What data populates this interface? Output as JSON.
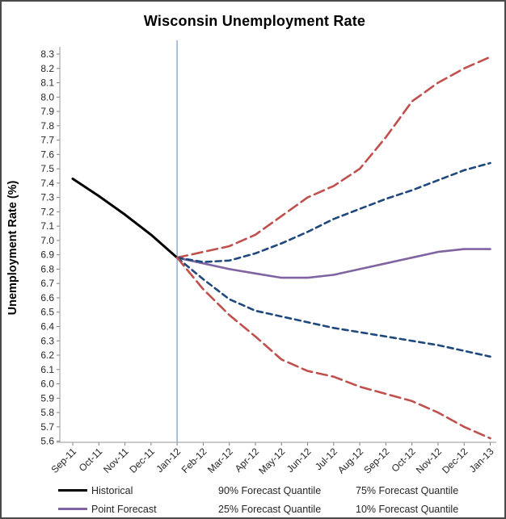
{
  "chart_data": {
    "type": "line",
    "title": "Wisconsin Unemployment Rate",
    "xlabel": "",
    "ylabel": "Unemployment Rate (%)",
    "ylim": [
      5.6,
      8.3
    ],
    "ytick_step": 0.1,
    "grid": false,
    "legend_position": "bottom",
    "categories": [
      "Sep-11",
      "Oct-11",
      "Nov-11",
      "Dec-11",
      "Jan-12",
      "Feb-12",
      "Mar-12",
      "Apr-12",
      "May-12",
      "Jun-12",
      "Jul-12",
      "Aug-12",
      "Sep-12",
      "Oct-12",
      "Nov-12",
      "Dec-12",
      "Jan-13"
    ],
    "series": [
      {
        "name": "Historical",
        "color": "#000000",
        "style": "solid",
        "width": 3,
        "start_index": 0,
        "values": [
          7.43,
          7.31,
          7.18,
          7.04,
          6.88
        ]
      },
      {
        "name": "Point Forecast",
        "color": "#8064A2",
        "style": "solid",
        "width": 2.6,
        "start_index": 4,
        "values": [
          6.88,
          6.84,
          6.8,
          6.77,
          6.74,
          6.74,
          6.76,
          6.8,
          6.84,
          6.88,
          6.92,
          6.94,
          6.94
        ]
      },
      {
        "name": "90% Forecast Quantile",
        "color": "#C0504D",
        "style": "long-dash",
        "width": 2.6,
        "start_index": 4,
        "values": [
          6.88,
          6.92,
          6.96,
          7.04,
          7.17,
          7.3,
          7.38,
          7.5,
          7.72,
          7.97,
          8.1,
          8.2,
          8.28
        ]
      },
      {
        "name": "75% Forecast Quantile",
        "color": "#1F497D",
        "style": "short-dash",
        "width": 2.6,
        "start_index": 4,
        "values": [
          6.88,
          6.85,
          6.86,
          6.91,
          6.98,
          7.06,
          7.15,
          7.22,
          7.29,
          7.35,
          7.42,
          7.49,
          7.54
        ]
      },
      {
        "name": "25% Forecast Quantile",
        "color": "#1F497D",
        "style": "short-dash",
        "width": 2.6,
        "start_index": 4,
        "values": [
          6.88,
          6.73,
          6.59,
          6.51,
          6.47,
          6.43,
          6.39,
          6.36,
          6.33,
          6.3,
          6.27,
          6.23,
          6.19
        ]
      },
      {
        "name": "10% Forecast Quantile",
        "color": "#C0504D",
        "style": "long-dash",
        "width": 2.6,
        "start_index": 4,
        "values": [
          6.88,
          6.66,
          6.48,
          6.33,
          6.17,
          6.09,
          6.05,
          5.98,
          5.93,
          5.88,
          5.8,
          5.7,
          5.62
        ]
      }
    ],
    "annotations": [
      {
        "type": "vline",
        "at": "Jan-12",
        "color": "#95B3D7",
        "width": 1.6
      }
    ]
  },
  "legend": {
    "rows": [
      [
        {
          "label": "Historical",
          "style": "solid",
          "color": "#000000"
        },
        {
          "label": "90% Forecast Quantile",
          "style": "long-dash",
          "color": "#C0504D"
        },
        {
          "label": "75% Forecast Quantile",
          "style": "short-dash",
          "color": "#1F497D"
        }
      ],
      [
        {
          "label": "Point Forecast",
          "style": "solid",
          "color": "#8064A2"
        },
        {
          "label": "25% Forecast Quantile",
          "style": "short-dash",
          "color": "#1F497D"
        },
        {
          "label": "10% Forecast Quantile",
          "style": "long-dash",
          "color": "#C0504D"
        }
      ]
    ]
  },
  "axis_colors": {
    "line": "#969696",
    "tick": "#808080",
    "label": "#262626"
  }
}
